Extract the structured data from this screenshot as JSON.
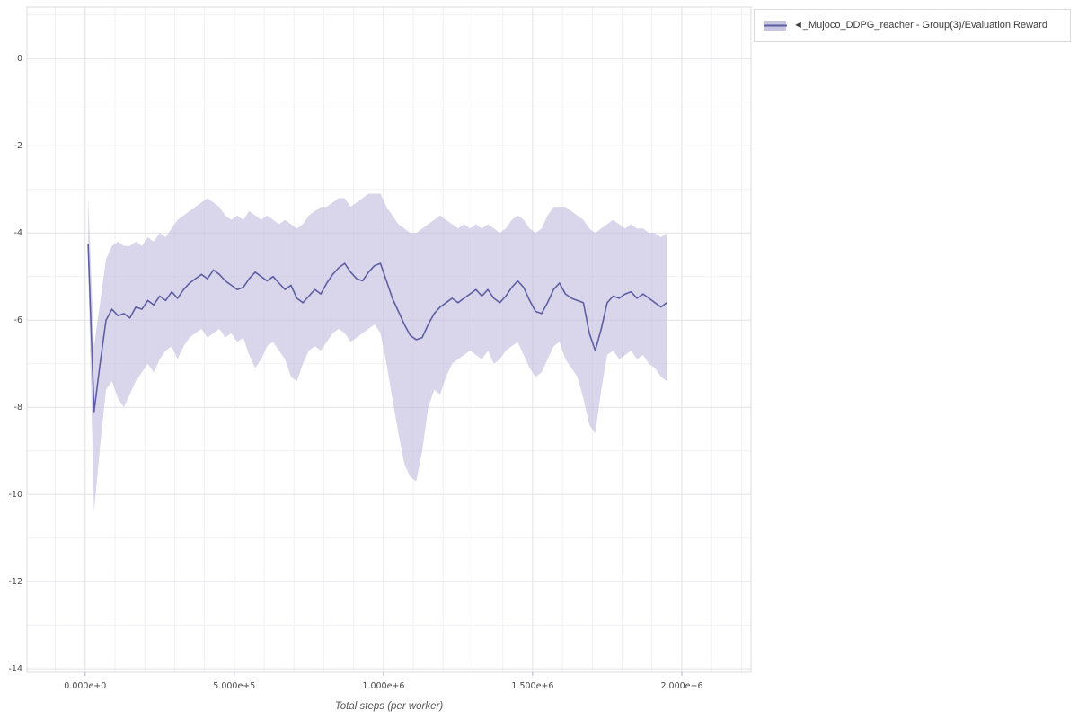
{
  "page": {
    "background": "#ffffff"
  },
  "legend": {
    "label": "◄_Mujoco_DDPG_reacher - Group(3)/Evaluation Reward"
  },
  "colors": {
    "line": "#5e5fa3",
    "band": "#b9b5da",
    "grid_major": "#e2e2e7",
    "grid_minor": "#f1f1f4",
    "tick_text": "#4a4a4a",
    "spine": "#dcdce2"
  },
  "chart_data": {
    "type": "line",
    "title": "",
    "xlabel": "Total steps (per worker)",
    "ylabel": "",
    "grid": true,
    "legend_position": "top-right",
    "xlim": [
      -195000,
      2232000
    ],
    "ylim": [
      -14.08,
      1.18
    ],
    "x_ticks": {
      "values": [
        0,
        500000,
        1000000,
        1500000,
        2000000
      ],
      "labels": [
        "0.000e+0",
        "5.000e+5",
        "1.000e+6",
        "1.500e+6",
        "2.000e+6"
      ]
    },
    "y_ticks": {
      "values": [
        0,
        -2,
        -4,
        -6,
        -8,
        -10,
        -12,
        -14
      ],
      "labels": [
        "0",
        "-2",
        "-4",
        "-6",
        "-8",
        "-10",
        "-12",
        "-14"
      ]
    },
    "x_minor_step": 100000,
    "y_minor_step": 1,
    "series": [
      {
        "name": "◄_Mujoco_DDPG_reacher - Group(3)/Evaluation Reward",
        "color": "#5e5fa3",
        "band_color": "#b9b5da",
        "band_opacity": 0.55,
        "x": [
          10000,
          30000,
          50000,
          70000,
          90000,
          110000,
          130000,
          150000,
          170000,
          190000,
          210000,
          230000,
          250000,
          270000,
          290000,
          310000,
          330000,
          350000,
          370000,
          390000,
          410000,
          430000,
          450000,
          470000,
          490000,
          510000,
          530000,
          550000,
          570000,
          590000,
          610000,
          630000,
          650000,
          670000,
          690000,
          710000,
          730000,
          750000,
          770000,
          790000,
          810000,
          830000,
          850000,
          870000,
          890000,
          910000,
          930000,
          950000,
          970000,
          990000,
          1010000,
          1030000,
          1050000,
          1070000,
          1090000,
          1110000,
          1130000,
          1150000,
          1170000,
          1190000,
          1210000,
          1230000,
          1250000,
          1270000,
          1290000,
          1310000,
          1330000,
          1350000,
          1370000,
          1390000,
          1410000,
          1430000,
          1450000,
          1470000,
          1490000,
          1510000,
          1530000,
          1550000,
          1570000,
          1590000,
          1610000,
          1630000,
          1650000,
          1670000,
          1690000,
          1710000,
          1730000,
          1750000,
          1770000,
          1790000,
          1810000,
          1830000,
          1850000,
          1870000,
          1890000,
          1910000,
          1930000,
          1950000
        ],
        "mean": [
          -4.25,
          -8.1,
          -7.0,
          -6.0,
          -5.75,
          -5.9,
          -5.85,
          -5.95,
          -5.7,
          -5.75,
          -5.55,
          -5.65,
          -5.45,
          -5.55,
          -5.35,
          -5.5,
          -5.3,
          -5.15,
          -5.05,
          -4.95,
          -5.05,
          -4.85,
          -4.95,
          -5.1,
          -5.2,
          -5.3,
          -5.25,
          -5.05,
          -4.9,
          -5.0,
          -5.1,
          -5.0,
          -5.15,
          -5.3,
          -5.2,
          -5.5,
          -5.6,
          -5.45,
          -5.3,
          -5.4,
          -5.15,
          -4.95,
          -4.8,
          -4.7,
          -4.9,
          -5.05,
          -5.1,
          -4.9,
          -4.75,
          -4.7,
          -5.1,
          -5.5,
          -5.8,
          -6.1,
          -6.35,
          -6.45,
          -6.4,
          -6.1,
          -5.85,
          -5.7,
          -5.6,
          -5.5,
          -5.6,
          -5.5,
          -5.4,
          -5.3,
          -5.45,
          -5.3,
          -5.5,
          -5.6,
          -5.45,
          -5.25,
          -5.1,
          -5.25,
          -5.55,
          -5.8,
          -5.85,
          -5.6,
          -5.3,
          -5.15,
          -5.4,
          -5.5,
          -5.55,
          -5.6,
          -6.3,
          -6.7,
          -6.2,
          -5.6,
          -5.45,
          -5.5,
          -5.4,
          -5.35,
          -5.5,
          -5.4,
          -5.5,
          -5.6,
          -5.7,
          -5.6
        ],
        "upper": [
          -3.2,
          -6.6,
          -5.6,
          -4.6,
          -4.3,
          -4.2,
          -4.3,
          -4.3,
          -4.2,
          -4.3,
          -4.1,
          -4.2,
          -4.0,
          -4.1,
          -3.9,
          -3.7,
          -3.6,
          -3.5,
          -3.4,
          -3.3,
          -3.2,
          -3.3,
          -3.4,
          -3.6,
          -3.7,
          -3.6,
          -3.7,
          -3.5,
          -3.6,
          -3.7,
          -3.6,
          -3.7,
          -3.8,
          -3.7,
          -3.8,
          -3.9,
          -3.8,
          -3.6,
          -3.5,
          -3.4,
          -3.4,
          -3.3,
          -3.2,
          -3.2,
          -3.4,
          -3.3,
          -3.2,
          -3.1,
          -3.1,
          -3.1,
          -3.4,
          -3.6,
          -3.8,
          -3.9,
          -4.0,
          -4.0,
          -3.9,
          -3.8,
          -3.7,
          -3.6,
          -3.7,
          -3.8,
          -3.9,
          -3.8,
          -3.9,
          -3.8,
          -3.9,
          -3.8,
          -3.9,
          -4.0,
          -3.9,
          -3.7,
          -3.6,
          -3.7,
          -3.9,
          -4.0,
          -3.9,
          -3.6,
          -3.4,
          -3.4,
          -3.4,
          -3.5,
          -3.6,
          -3.7,
          -3.9,
          -4.0,
          -3.9,
          -3.8,
          -3.7,
          -3.8,
          -3.9,
          -3.8,
          -3.9,
          -3.9,
          -4.0,
          -4.0,
          -4.1,
          -4.0
        ],
        "lower": [
          -4.8,
          -10.4,
          -8.9,
          -7.6,
          -7.4,
          -7.8,
          -8.0,
          -7.7,
          -7.4,
          -7.2,
          -7.0,
          -7.2,
          -6.9,
          -6.7,
          -6.6,
          -6.9,
          -6.6,
          -6.4,
          -6.3,
          -6.2,
          -6.4,
          -6.3,
          -6.2,
          -6.4,
          -6.3,
          -6.5,
          -6.4,
          -6.8,
          -7.1,
          -6.9,
          -6.6,
          -6.5,
          -6.7,
          -6.9,
          -7.3,
          -7.4,
          -7.0,
          -6.7,
          -6.6,
          -6.7,
          -6.5,
          -6.3,
          -6.2,
          -6.3,
          -6.5,
          -6.4,
          -6.3,
          -6.2,
          -6.1,
          -6.3,
          -7.0,
          -7.8,
          -8.6,
          -9.3,
          -9.6,
          -9.7,
          -9.0,
          -8.0,
          -7.6,
          -7.7,
          -7.3,
          -7.0,
          -6.9,
          -6.8,
          -6.7,
          -6.8,
          -6.9,
          -6.7,
          -7.0,
          -6.9,
          -6.7,
          -6.6,
          -6.5,
          -6.8,
          -7.1,
          -7.3,
          -7.2,
          -6.9,
          -6.6,
          -6.5,
          -6.9,
          -7.1,
          -7.3,
          -7.8,
          -8.4,
          -8.6,
          -7.6,
          -6.8,
          -6.7,
          -6.9,
          -6.8,
          -6.7,
          -6.9,
          -6.8,
          -7.0,
          -7.1,
          -7.3,
          -7.4
        ]
      }
    ]
  }
}
